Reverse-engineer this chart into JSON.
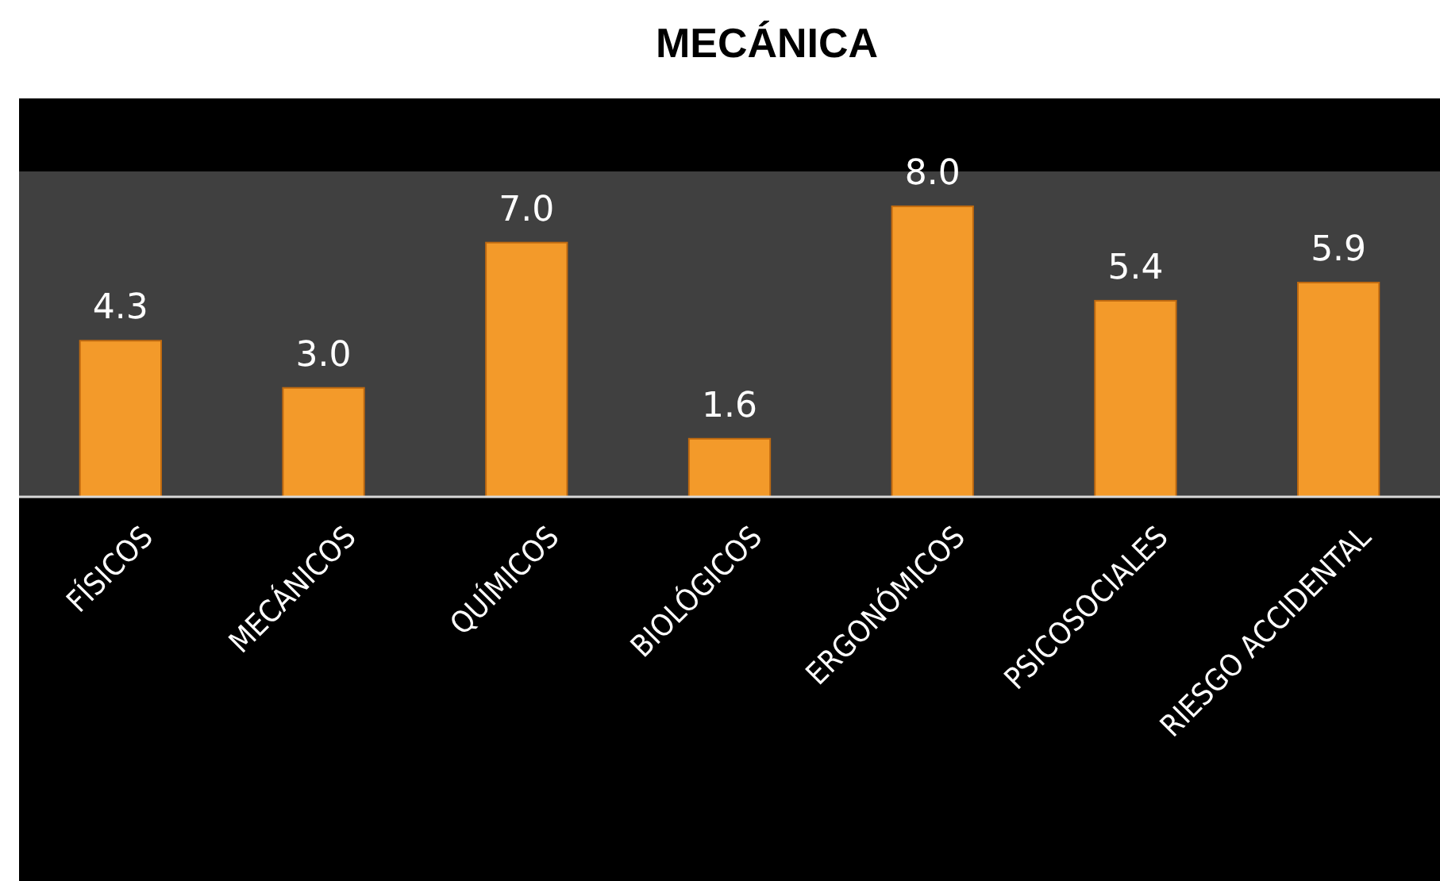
{
  "chart_data": {
    "type": "bar",
    "title": "MECÁNICA",
    "categories": [
      "FÍSICOS",
      "MECÁNICOS",
      "QUÍMICOS",
      "BIOLÓGICOS",
      "ERGONÓMICOS",
      "PSICOSOCIALES",
      "RIESGO ACCIDENTAL"
    ],
    "values": [
      4.3,
      3.0,
      7.0,
      1.6,
      8.0,
      5.4,
      5.9
    ],
    "value_labels": [
      "4.3",
      "3.0",
      "7.0",
      "1.6",
      "8.0",
      "5.4",
      "5.9"
    ],
    "color": "#f39a2a"
  }
}
